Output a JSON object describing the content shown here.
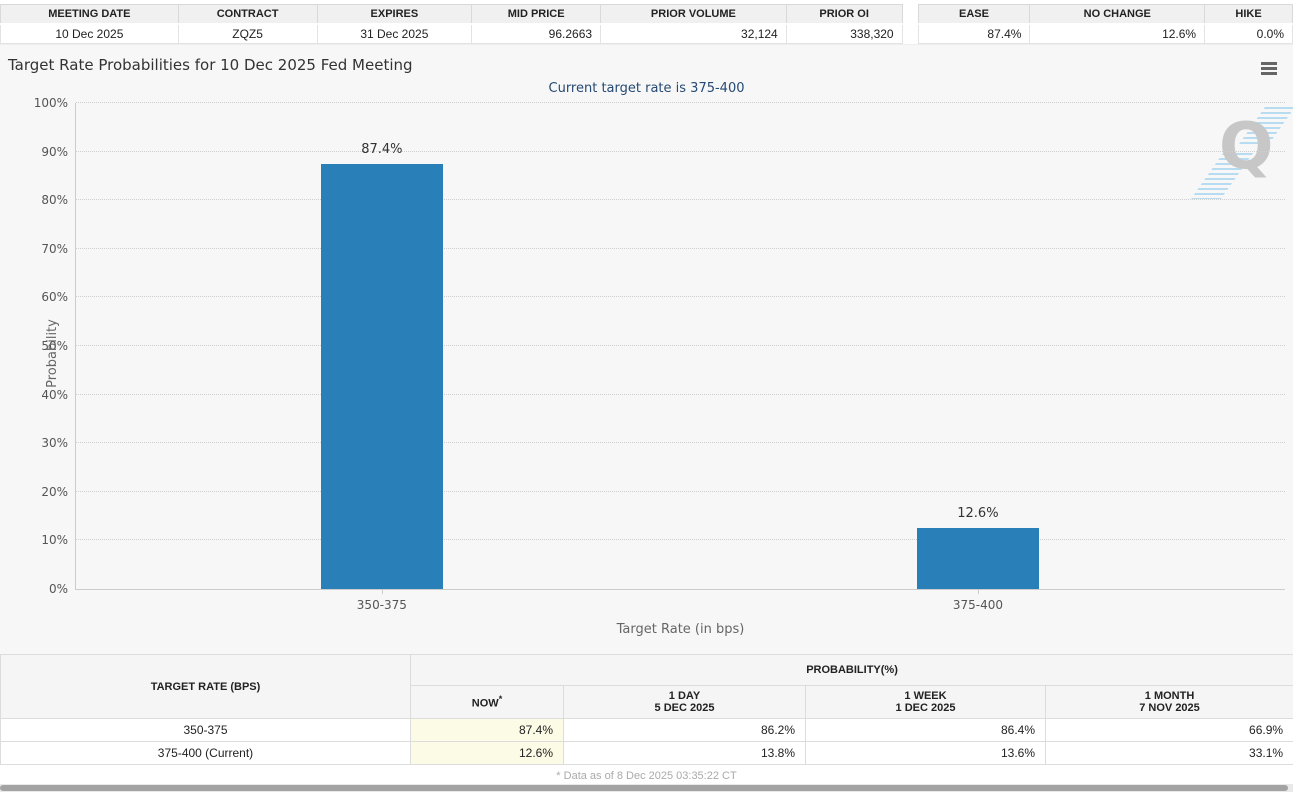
{
  "contract_table": {
    "headers": [
      "MEETING DATE",
      "CONTRACT",
      "EXPIRES",
      "MID PRICE",
      "PRIOR VOLUME",
      "PRIOR OI"
    ],
    "values": [
      "10 Dec 2025",
      "ZQZ5",
      "31 Dec 2025",
      "96.2663",
      "32,124",
      "338,320"
    ]
  },
  "action_table": {
    "headers": [
      "EASE",
      "NO CHANGE",
      "HIKE"
    ],
    "values": [
      "87.4%",
      "12.6%",
      "0.0%"
    ]
  },
  "chart": {
    "title": "Target Rate Probabilities for 10 Dec 2025 Fed Meeting",
    "subtitle": "Current target rate is 375-400",
    "menu_icon": "hamburger-icon",
    "watermark_letter": "Q"
  },
  "chart_data": {
    "type": "bar",
    "title": "Target Rate Probabilities for 10 Dec 2025 Fed Meeting",
    "subtitle": "Current target rate is 375-400",
    "categories": [
      "350-375",
      "375-400"
    ],
    "values": [
      87.4,
      12.6
    ],
    "value_labels": [
      "87.4%",
      "12.6%"
    ],
    "xlabel": "Target Rate (in bps)",
    "ylabel": "Probability",
    "ylim": [
      0,
      100
    ],
    "ytick_step": 10,
    "ytick_labels": [
      "0%",
      "10%",
      "20%",
      "30%",
      "40%",
      "50%",
      "60%",
      "70%",
      "80%",
      "90%",
      "100%"
    ],
    "grid": "dotted horizontal",
    "legend": "none",
    "bar_color": "#2980b9"
  },
  "probability_table": {
    "col1_header": "TARGET RATE (BPS)",
    "group_header": "PROBABILITY(%)",
    "sub_headers": [
      {
        "line1": "NOW",
        "asterisk": "*",
        "line2": ""
      },
      {
        "line1": "1 DAY",
        "line2": "5 DEC 2025"
      },
      {
        "line1": "1 WEEK",
        "line2": "1 DEC 2025"
      },
      {
        "line1": "1 MONTH",
        "line2": "7 NOV 2025"
      }
    ],
    "rows": [
      {
        "rate": "350-375",
        "now": "87.4%",
        "day": "86.2%",
        "week": "86.4%",
        "month": "66.9%"
      },
      {
        "rate": "375-400 (Current)",
        "now": "12.6%",
        "day": "13.8%",
        "week": "13.6%",
        "month": "33.1%"
      }
    ],
    "footnote": "* Data as of 8 Dec 2025 03:35:22 CT"
  },
  "colors": {
    "bar": "#2980b9",
    "subtitle_text": "#264a73",
    "now_highlight": "#fbfbe6",
    "chart_bg": "#f7f7f7"
  }
}
